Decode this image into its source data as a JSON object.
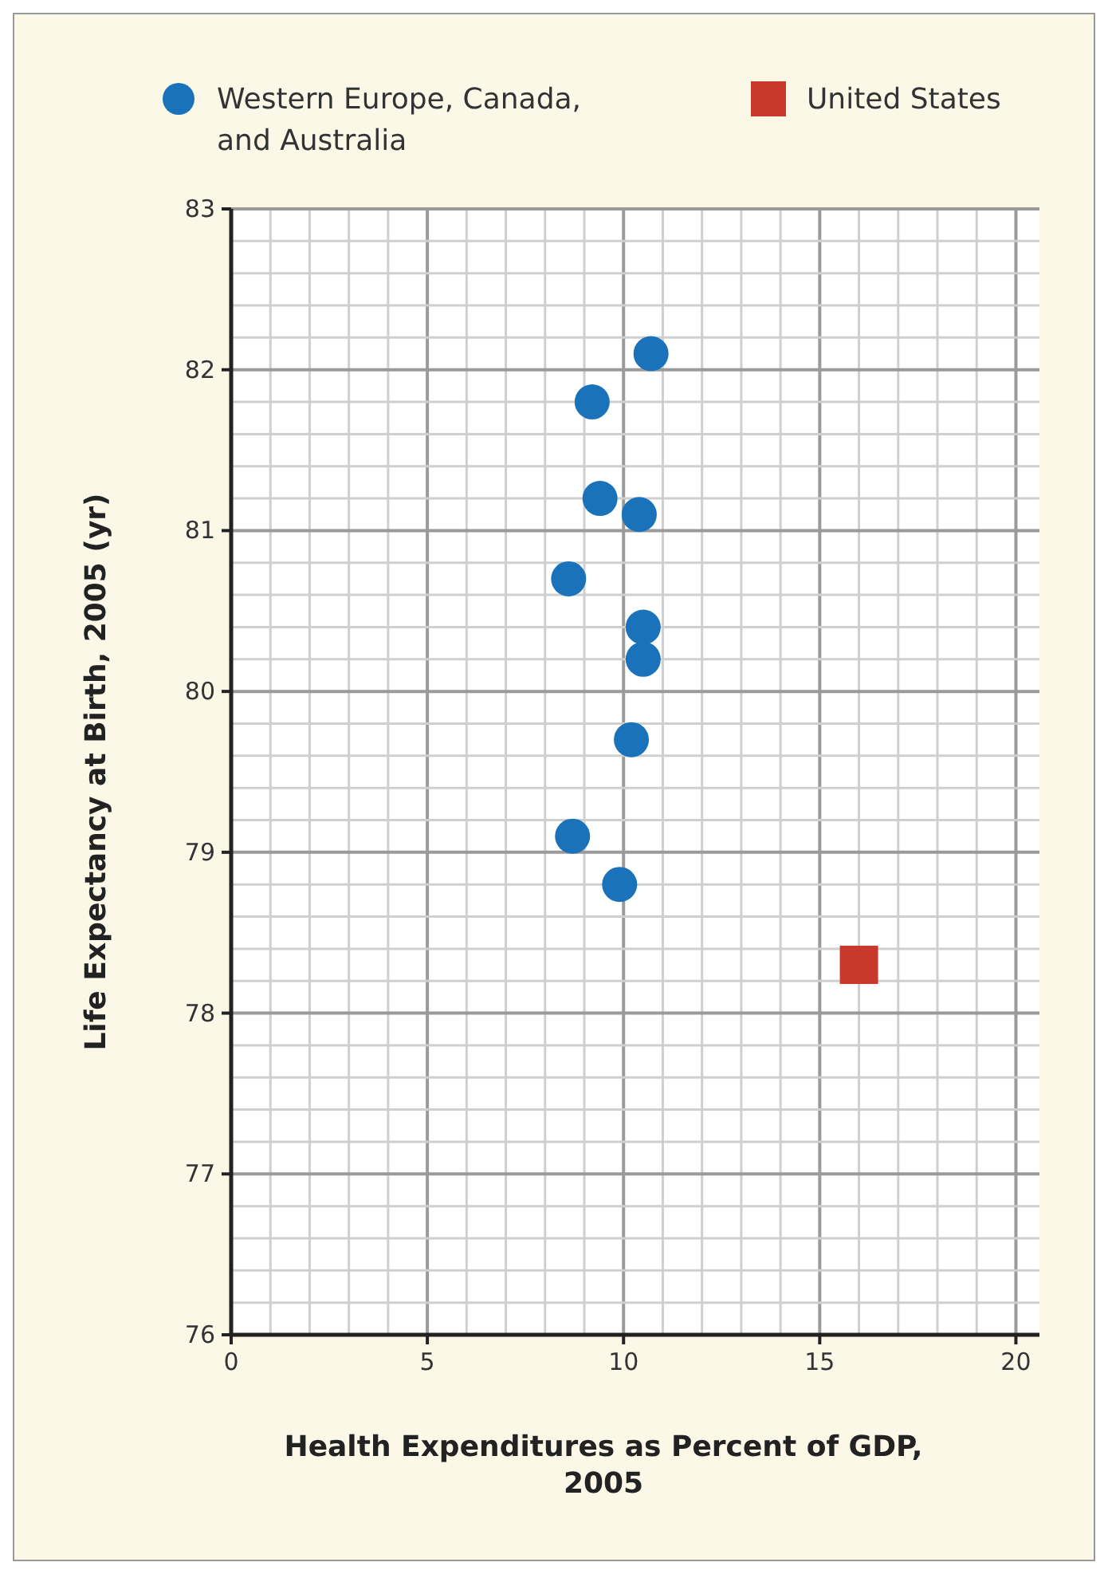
{
  "chart_data": {
    "type": "scatter",
    "xlabel": "Health Expenditures as Percent of GDP, 2005",
    "ylabel": "Life Expectancy at Birth, 2005 (yr)",
    "xlim": [
      0,
      20.6
    ],
    "ylim": [
      76,
      83
    ],
    "xticks": [
      0,
      {
        "value": 1,
        "label": null
      },
      {
        "value": 2,
        "label": null
      },
      {
        "value": 3,
        "label": null
      },
      {
        "value": 4,
        "label": null
      },
      5,
      {
        "value": 6,
        "label": null
      },
      {
        "value": 7,
        "label": null
      },
      {
        "value": 8,
        "label": null
      },
      {
        "value": 9,
        "label": null
      },
      10,
      {
        "value": 11,
        "label": null
      },
      {
        "value": 12,
        "label": null
      },
      {
        "value": 13,
        "label": null
      },
      {
        "value": 14,
        "label": null
      },
      15,
      {
        "value": 16,
        "label": null
      },
      {
        "value": 17,
        "label": null
      },
      {
        "value": 18,
        "label": null
      },
      {
        "value": 19,
        "label": null
      },
      20
    ],
    "yticks": [
      76,
      {
        "value": 76.2,
        "label": null
      },
      {
        "value": 76.4,
        "label": null
      },
      {
        "value": 76.6,
        "label": null
      },
      {
        "value": 76.8,
        "label": null
      },
      77,
      {
        "value": 77.2,
        "label": null
      },
      {
        "value": 77.4,
        "label": null
      },
      {
        "value": 77.6,
        "label": null
      },
      {
        "value": 77.8,
        "label": null
      },
      78,
      {
        "value": 78.2,
        "label": null
      },
      {
        "value": 78.4,
        "label": null
      },
      {
        "value": 78.6,
        "label": null
      },
      {
        "value": 78.8,
        "label": null
      },
      79,
      {
        "value": 79.2,
        "label": null
      },
      {
        "value": 79.4,
        "label": null
      },
      {
        "value": 79.6,
        "label": null
      },
      {
        "value": 79.8,
        "label": null
      },
      80,
      {
        "value": 80.2,
        "label": null
      },
      {
        "value": 80.4,
        "label": null
      },
      {
        "value": 80.6,
        "label": null
      },
      {
        "value": 80.8,
        "label": null
      },
      81,
      {
        "value": 81.2,
        "label": null
      },
      {
        "value": 81.4,
        "label": null
      },
      {
        "value": 81.6,
        "label": null
      },
      {
        "value": 81.8,
        "label": null
      },
      82,
      {
        "value": 82.2,
        "label": null
      },
      {
        "value": 82.4,
        "label": null
      },
      {
        "value": 82.6,
        "label": null
      },
      {
        "value": 82.8,
        "label": null
      },
      83
    ],
    "grid": true,
    "legend": "top",
    "series": [
      {
        "name": "Western Europe, Canada, and Australia",
        "color": "#1a72bb",
        "marker": "circle",
        "x": [
          10.7,
          9.2,
          9.4,
          10.4,
          8.6,
          10.5,
          10.5,
          10.2,
          8.7,
          9.9
        ],
        "values": [
          82.1,
          81.8,
          81.2,
          81.1,
          80.7,
          80.4,
          80.2,
          79.7,
          79.1,
          78.8
        ]
      },
      {
        "name": "United States",
        "color": "#c8392b",
        "marker": "square",
        "x": [
          16.0
        ],
        "values": [
          78.3
        ]
      }
    ]
  }
}
